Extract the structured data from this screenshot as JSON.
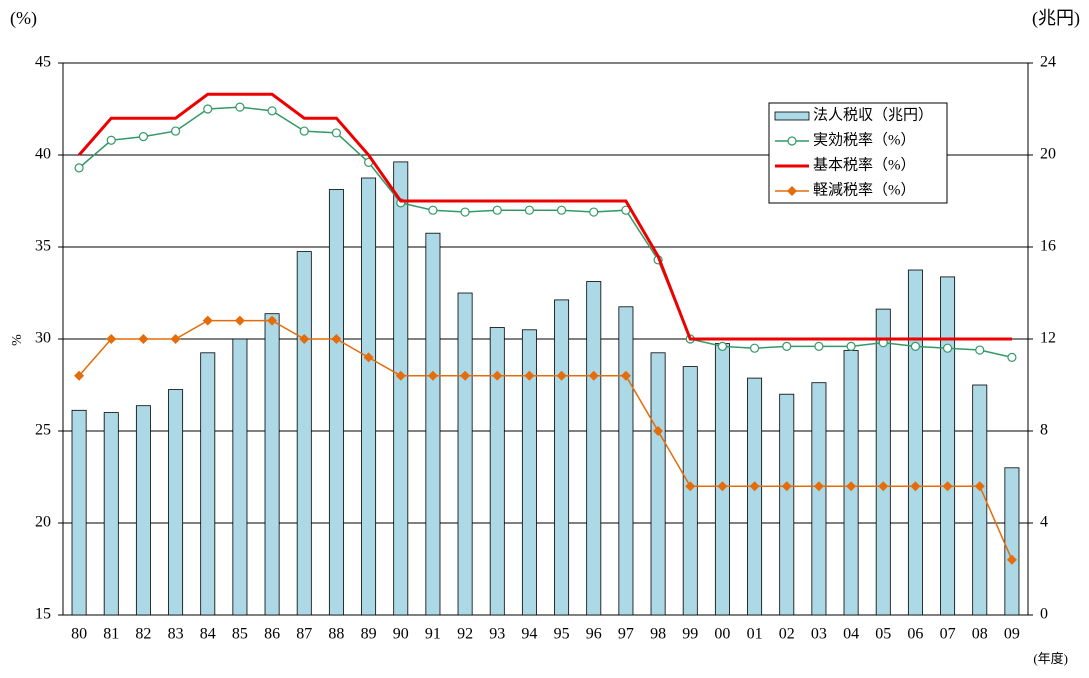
{
  "chart_data": {
    "type": "bar",
    "left_unit_label": "(%)",
    "right_unit_label": "(兆円)",
    "y_label": "%",
    "x_label": "(年度)",
    "categories": [
      "80",
      "81",
      "82",
      "83",
      "84",
      "85",
      "86",
      "87",
      "88",
      "89",
      "90",
      "91",
      "92",
      "93",
      "94",
      "95",
      "96",
      "97",
      "98",
      "99",
      "00",
      "01",
      "02",
      "03",
      "04",
      "05",
      "06",
      "07",
      "08",
      "09"
    ],
    "series": [
      {
        "name": "法人税収（兆円）",
        "type": "bar",
        "axis": "y2",
        "color": "#add8e6",
        "values": [
          8.9,
          8.8,
          9.1,
          9.8,
          11.4,
          12.0,
          13.1,
          15.8,
          18.5,
          19.0,
          19.7,
          16.6,
          14.0,
          12.5,
          12.4,
          13.7,
          14.5,
          13.4,
          11.4,
          10.8,
          11.8,
          10.3,
          9.6,
          10.1,
          11.5,
          13.3,
          15.0,
          14.7,
          10.0,
          6.4
        ]
      },
      {
        "name": "実効税率（%）",
        "type": "line",
        "marker": "circle",
        "color": "#339966",
        "values": [
          39.3,
          40.8,
          41.0,
          41.3,
          42.5,
          42.6,
          42.4,
          41.3,
          41.2,
          39.6,
          37.4,
          37.0,
          36.9,
          37.0,
          37.0,
          37.0,
          36.9,
          37.0,
          34.3,
          30.0,
          29.6,
          29.5,
          29.6,
          29.6,
          29.6,
          29.8,
          29.6,
          29.5,
          29.4,
          29.0
        ]
      },
      {
        "name": "基本税率（%）",
        "type": "line",
        "marker": "none",
        "color": "#ee0000",
        "values": [
          40.0,
          42.0,
          42.0,
          42.0,
          43.3,
          43.3,
          43.3,
          42.0,
          42.0,
          40.0,
          37.5,
          37.5,
          37.5,
          37.5,
          37.5,
          37.5,
          37.5,
          37.5,
          34.5,
          30.0,
          30.0,
          30.0,
          30.0,
          30.0,
          30.0,
          30.0,
          30.0,
          30.0,
          30.0,
          30.0
        ]
      },
      {
        "name": "軽減税率（%）",
        "type": "line",
        "marker": "diamond",
        "color": "#e46c0a",
        "values": [
          28,
          30,
          30,
          30,
          31,
          31,
          31,
          30,
          30,
          29,
          28,
          28,
          28,
          28,
          28,
          28,
          28,
          28,
          25,
          22,
          22,
          22,
          22,
          22,
          22,
          22,
          22,
          22,
          22,
          18
        ]
      }
    ],
    "ylim": [
      15,
      45
    ],
    "yticks": [
      15,
      20,
      25,
      30,
      35,
      40,
      45
    ],
    "y2lim": [
      0,
      24
    ],
    "y2ticks": [
      0,
      4,
      8,
      12,
      16,
      20,
      24
    ],
    "grid": true
  }
}
